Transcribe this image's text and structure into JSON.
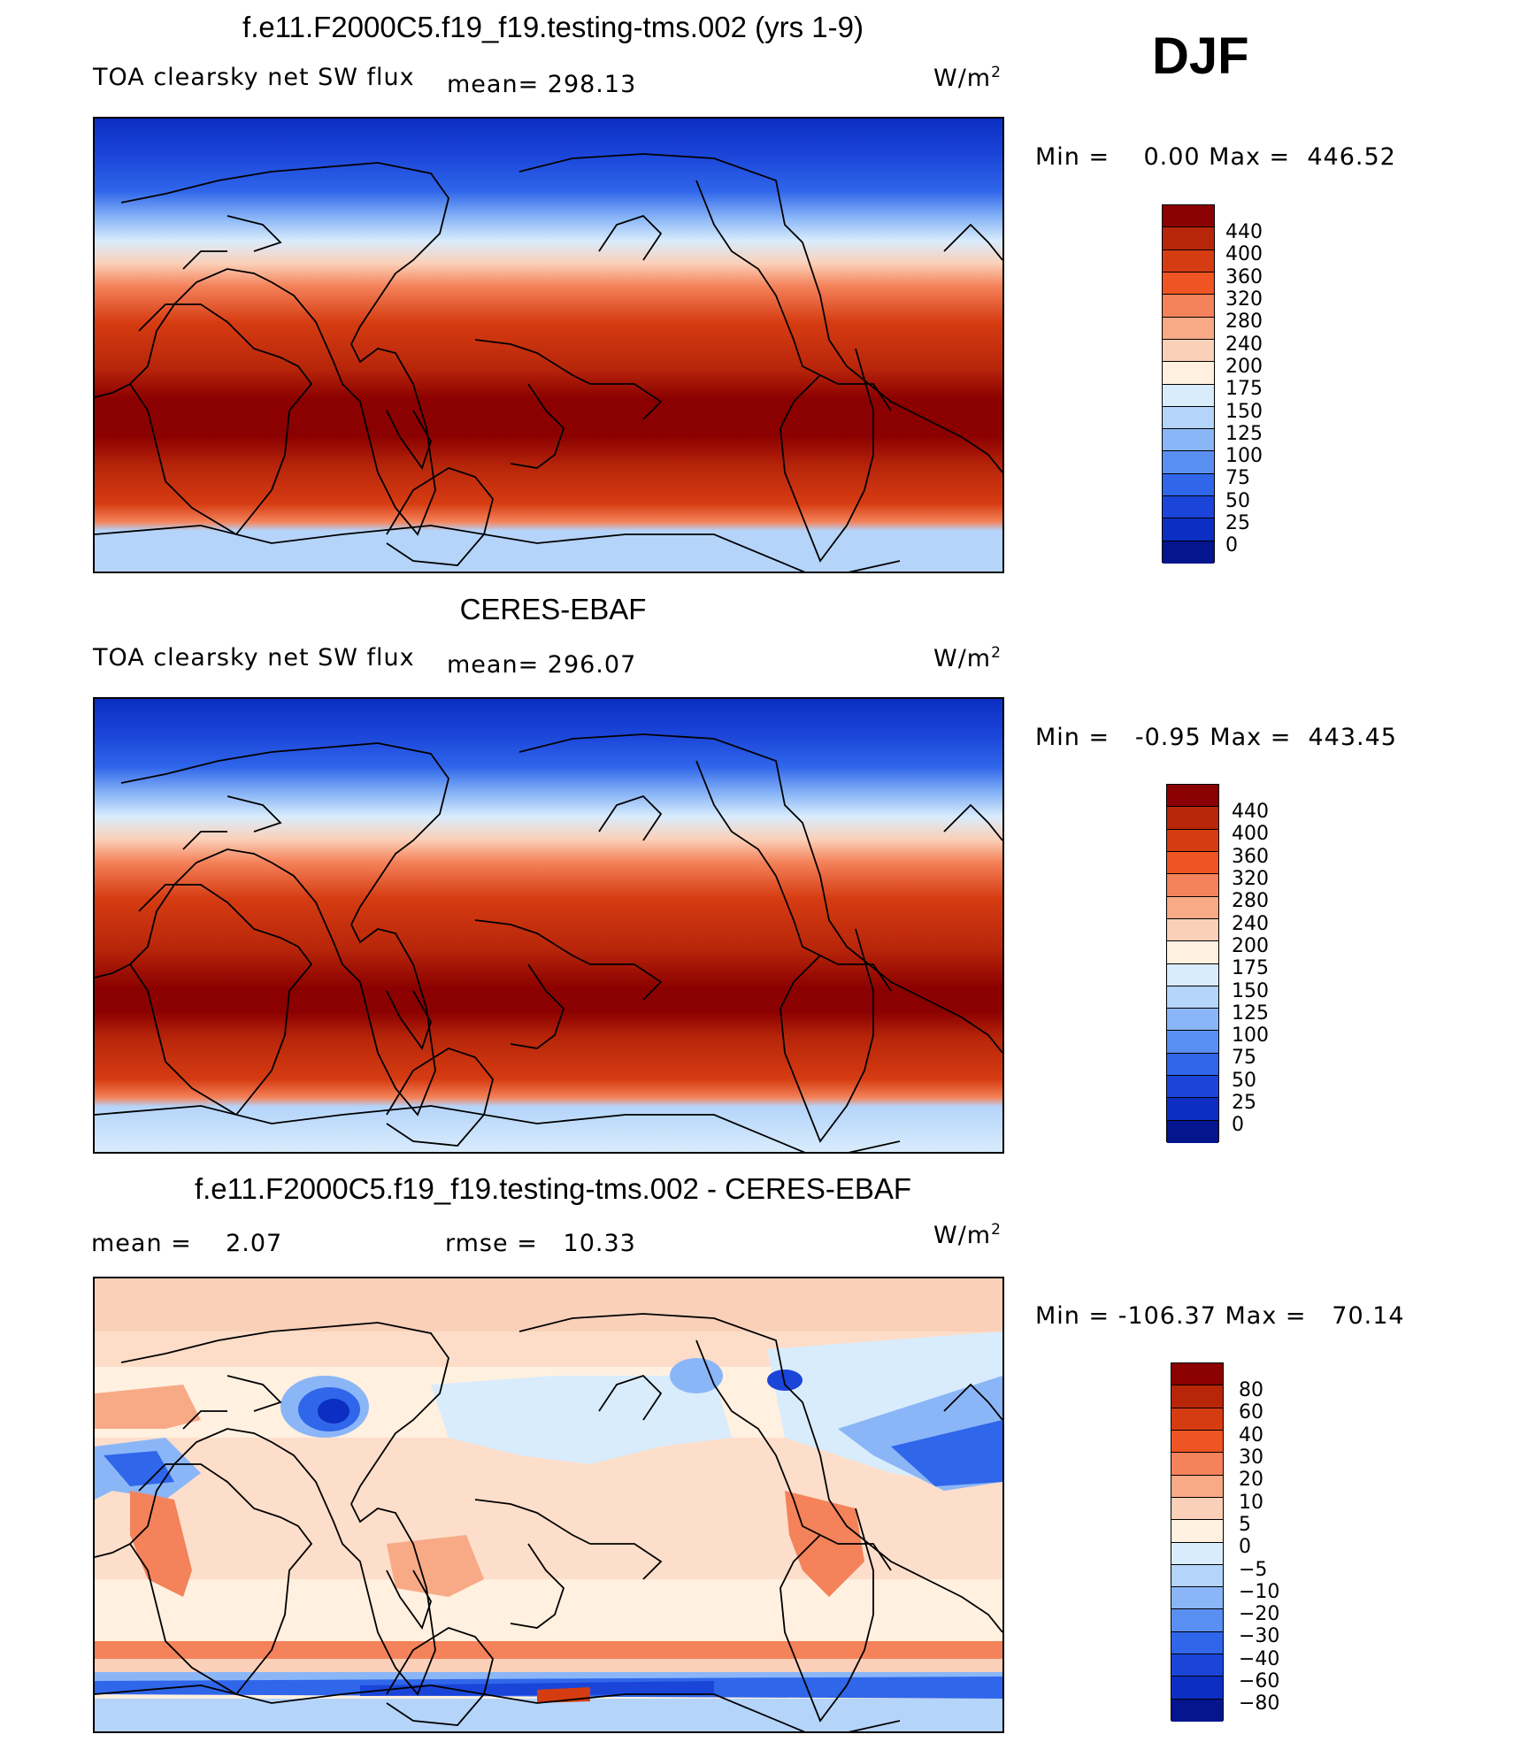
{
  "header": {
    "season": "DJF"
  },
  "panels": [
    {
      "id": "model",
      "title": "f.e11.F2000C5.f19_f19.testing-tms.002 (yrs 1-9)",
      "left_label": "TOA clearsky net SW flux",
      "mean_label": "mean=  298.13",
      "units_base": "W/m",
      "units_exp": "2",
      "minmax": "Min =    0.00 Max =  446.52",
      "colorbar": {
        "colors": [
          "#8b0000",
          "#b8260a",
          "#d63c12",
          "#ee5522",
          "#f4825a",
          "#f8aa87",
          "#fbd0b8",
          "#fff0e0",
          "#d9ecfc",
          "#b4d4fa",
          "#8ab6f7",
          "#5a8ff2",
          "#2f66ea",
          "#1b45d9",
          "#0c2ec2",
          "#04158e"
        ],
        "labels": [
          "440",
          "400",
          "360",
          "320",
          "280",
          "240",
          "200",
          "175",
          "150",
          "125",
          "100",
          "75",
          "50",
          "25",
          "0"
        ]
      }
    },
    {
      "id": "obs",
      "title": "CERES-EBAF",
      "left_label": "TOA clearsky net SW flux",
      "mean_label": "mean=  296.07",
      "units_base": "W/m",
      "units_exp": "2",
      "minmax": "Min =   -0.95 Max =  443.45",
      "colorbar": {
        "colors": [
          "#8b0000",
          "#b8260a",
          "#d63c12",
          "#ee5522",
          "#f4825a",
          "#f8aa87",
          "#fbd0b8",
          "#fff0e0",
          "#d9ecfc",
          "#b4d4fa",
          "#8ab6f7",
          "#5a8ff2",
          "#2f66ea",
          "#1b45d9",
          "#0c2ec2",
          "#04158e"
        ],
        "labels": [
          "440",
          "400",
          "360",
          "320",
          "280",
          "240",
          "200",
          "175",
          "150",
          "125",
          "100",
          "75",
          "50",
          "25",
          "0"
        ]
      }
    },
    {
      "id": "diff",
      "title": "f.e11.F2000C5.f19_f19.testing-tms.002 - CERES-EBAF",
      "left_label": "mean =    2.07",
      "mean_label": "rmse =   10.33",
      "units_base": "W/m",
      "units_exp": "2",
      "minmax": "Min = -106.37 Max =   70.14",
      "colorbar": {
        "colors": [
          "#8b0000",
          "#b8260a",
          "#d63c12",
          "#ee5522",
          "#f4825a",
          "#f8aa87",
          "#fbd0b8",
          "#fff0e0",
          "#d9ecfc",
          "#b4d4fa",
          "#8ab6f7",
          "#5a8ff2",
          "#2f66ea",
          "#1b45d9",
          "#0c2ec2",
          "#04158e"
        ],
        "labels": [
          "80",
          "60",
          "40",
          "30",
          "20",
          "10",
          "5",
          "0",
          "-5",
          "-10",
          "-20",
          "-30",
          "-40",
          "-60",
          "-80"
        ]
      }
    }
  ]
}
